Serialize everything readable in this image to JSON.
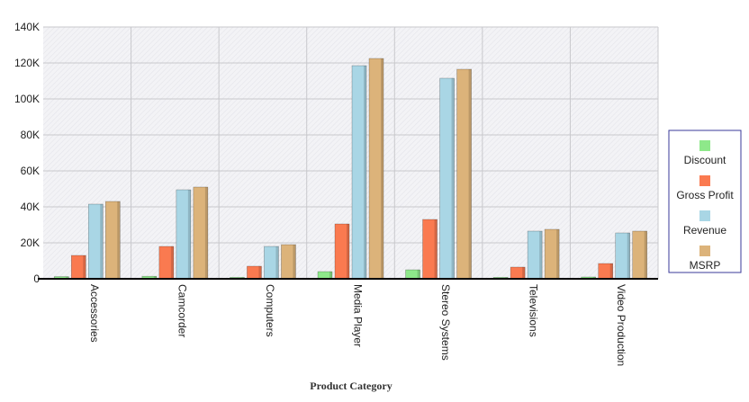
{
  "chart_data": {
    "type": "bar",
    "title": "",
    "xlabel": "Product Category",
    "ylabel": "",
    "ylim": [
      0,
      140000
    ],
    "yticks": [
      0,
      20000,
      40000,
      60000,
      80000,
      100000,
      120000,
      140000
    ],
    "ytick_labels": [
      "0",
      "20K",
      "40K",
      "60K",
      "80K",
      "100K",
      "120K",
      "140K"
    ],
    "grid": true,
    "legend_position": "right",
    "categories": [
      "Accessories",
      "Camcorder",
      "Computers",
      "Media Player",
      "Stereo Systems",
      "Televisions",
      "Video Production"
    ],
    "series": [
      {
        "name": "Discount",
        "color": "#8ee88a",
        "values": [
          1200,
          1400,
          800,
          4000,
          5000,
          800,
          1000
        ]
      },
      {
        "name": "Gross Profit",
        "color": "#fa7a50",
        "values": [
          13000,
          18000,
          7000,
          30500,
          33000,
          6500,
          8500
        ]
      },
      {
        "name": "Revenue",
        "color": "#a9d6e5",
        "values": [
          41500,
          49500,
          18000,
          118500,
          111500,
          26500,
          25500
        ]
      },
      {
        "name": "MSRP",
        "color": "#dcb37a",
        "values": [
          43000,
          51000,
          19000,
          122500,
          116500,
          27500,
          26500
        ]
      }
    ]
  }
}
